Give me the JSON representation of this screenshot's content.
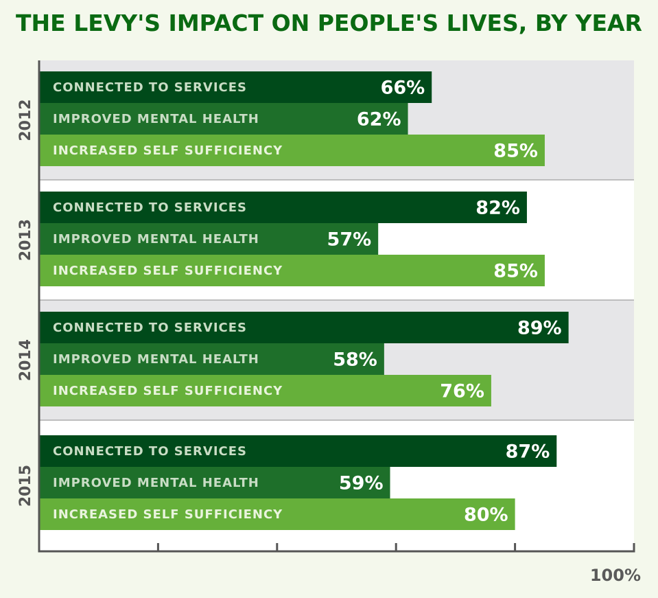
{
  "title": "THE LEVY'S IMPACT ON PEOPLE'S LIVES, BY YEAR",
  "colors": {
    "page_bg": "#f4f8ec",
    "title": "#0a6a12",
    "band_shaded": "#e6e6e8",
    "band_plain": "#ffffff",
    "axis": "#555555",
    "series": [
      "#004a1a",
      "#1e6f2a",
      "#66b03a"
    ],
    "series_text": [
      "#c9ddc5",
      "#c9ddc5",
      "#e9f4dd"
    ]
  },
  "chart_data": {
    "type": "bar",
    "orientation": "horizontal",
    "title": "THE LEVY'S IMPACT ON PEOPLE'S LIVES, BY YEAR",
    "categories": [
      "2012",
      "2013",
      "2014",
      "2015"
    ],
    "series": [
      {
        "name": "CONNECTED TO SERVICES",
        "values": [
          66,
          82,
          89,
          87
        ]
      },
      {
        "name": "IMPROVED MENTAL HEALTH",
        "values": [
          62,
          57,
          58,
          59
        ]
      },
      {
        "name": "INCREASED SELF SUFFICIENCY",
        "values": [
          85,
          85,
          76,
          80
        ]
      }
    ],
    "value_suffix": "%",
    "xlim": [
      0,
      100
    ],
    "x_ticks": [
      0,
      20,
      40,
      60,
      80,
      100
    ],
    "x_tick_labels_shown": [
      "100%"
    ],
    "xlabel": "",
    "ylabel": ""
  }
}
